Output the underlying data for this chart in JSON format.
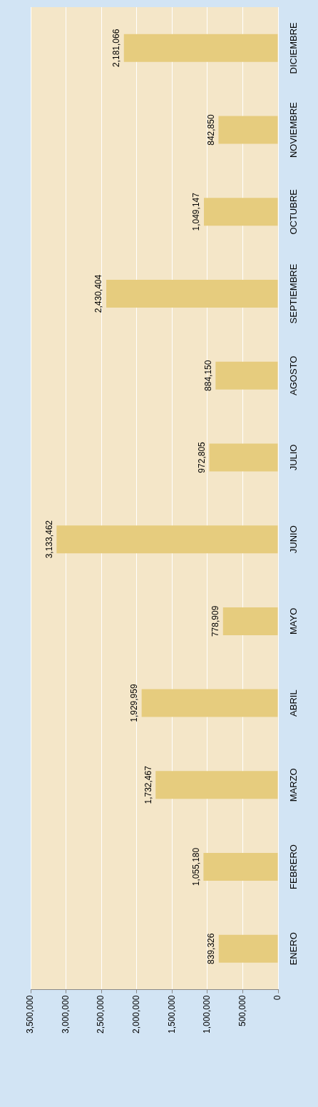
{
  "chart_data": {
    "type": "bar",
    "orientation": "horizontal",
    "categories": [
      "DICIEMBRE",
      "NOVIEMBRE",
      "OCTUBRE",
      "SEPTIEMBRE",
      "AGOSTO",
      "JULIO",
      "JUNIO",
      "MAYO",
      "ABRIL",
      "MARZO",
      "FEBRERO",
      "ENERO"
    ],
    "values": [
      2181066,
      842850,
      1049147,
      2430404,
      884150,
      972805,
      3133462,
      778909,
      1929959,
      1732467,
      1055180,
      839326
    ],
    "value_labels": [
      "2,181,066",
      "842,850",
      "1,049,147",
      "2,430,404",
      "884,150",
      "972,805",
      "3,133,462",
      "778,909",
      "1,929,959",
      "1,732,467",
      "1,055,180",
      "839,326"
    ],
    "color": "#e6cc7e",
    "xlim": [
      3500000,
      0
    ],
    "xticks": [
      {
        "value": 3500000,
        "label": "3,500,000"
      },
      {
        "value": 3000000,
        "label": "3,000,000"
      },
      {
        "value": 2500000,
        "label": "2,500,000"
      },
      {
        "value": 2000000,
        "label": "2,000,000"
      },
      {
        "value": 1500000,
        "label": "1,500,000"
      },
      {
        "value": 1000000,
        "label": "1,000,000"
      },
      {
        "value": 500000,
        "label": "500,000"
      },
      {
        "value": 0,
        "label": "0"
      }
    ],
    "grid": "x",
    "legend": false
  }
}
